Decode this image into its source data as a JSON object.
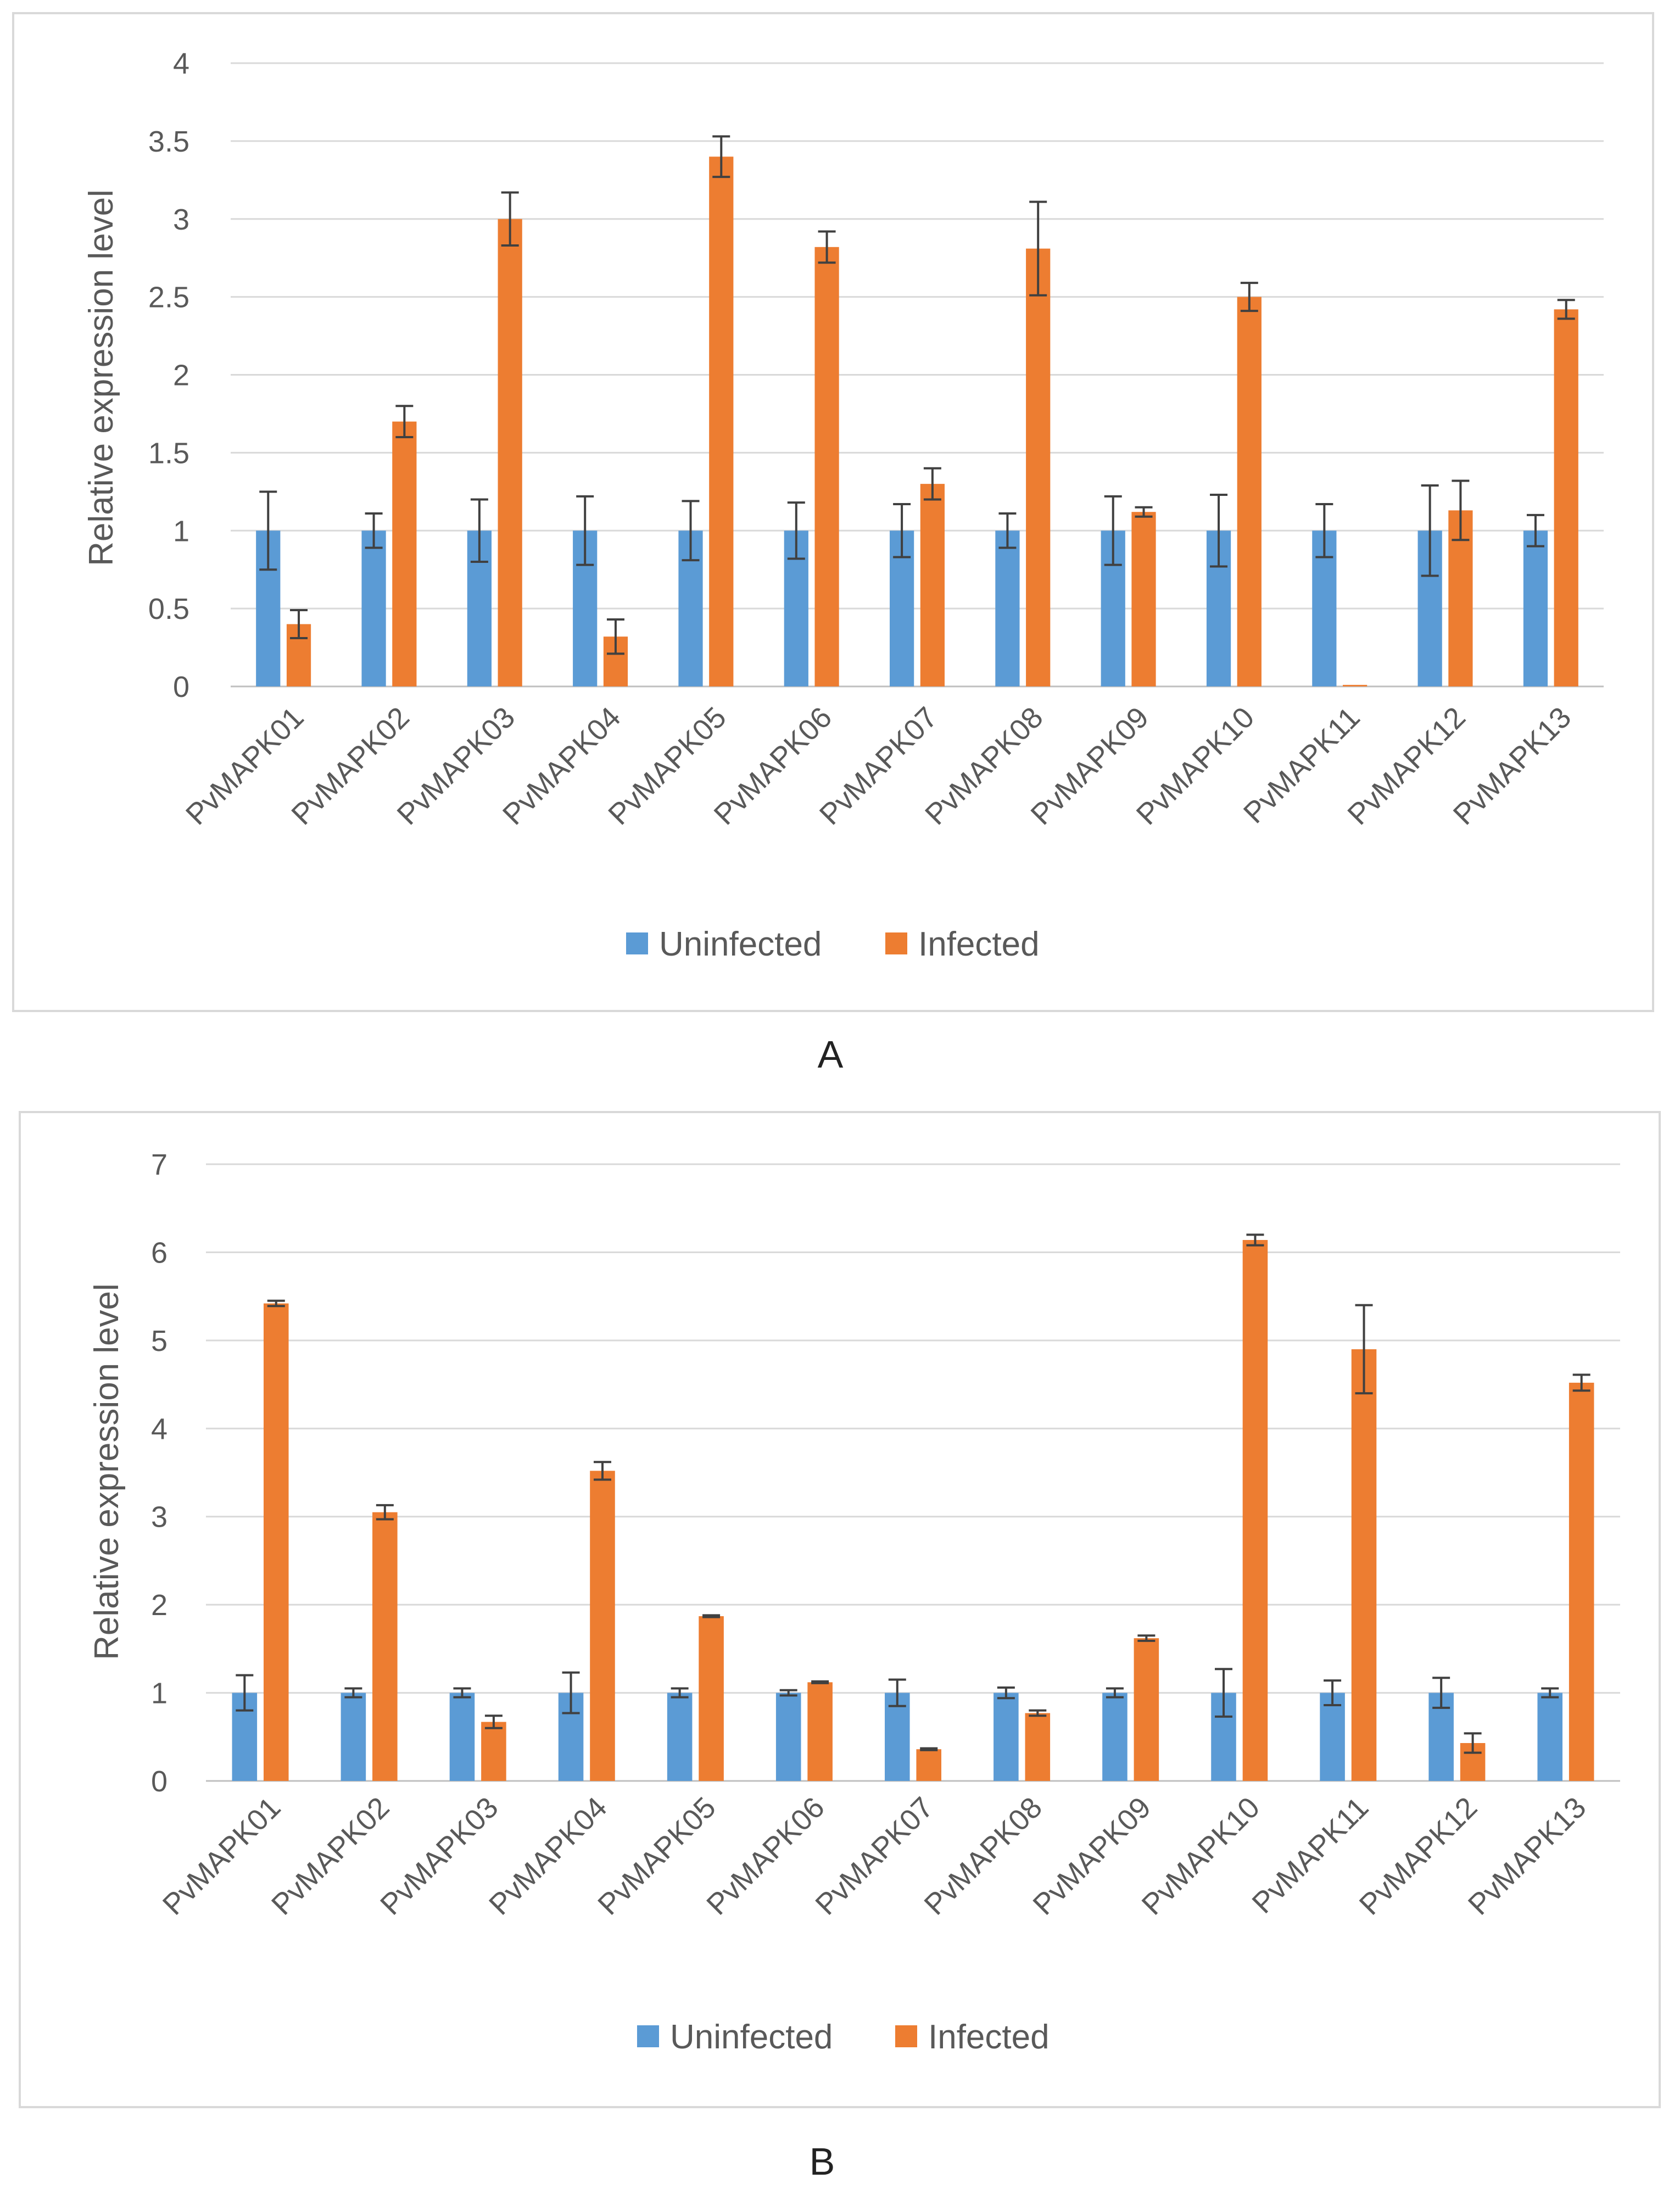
{
  "colors": {
    "uninfected": "#5B9BD5",
    "infected": "#ED7D31",
    "grid": "#D9D9D9",
    "error": "#404040"
  },
  "chart_data": [
    {
      "type": "bar",
      "panel_label": "A",
      "categories": [
        "PvMAPK01",
        "PvMAPK02",
        "PvMAPK03",
        "PvMAPK04",
        "PvMAPK05",
        "PvMAPK06",
        "PvMAPK07",
        "PvMAPK08",
        "PvMAPK09",
        "PvMAPK10",
        "PvMAPK11",
        "PvMAPK12",
        "PvMAPK13"
      ],
      "ylabel": "Relative expression level",
      "ylim": [
        0,
        4
      ],
      "yticks": [
        "0",
        "0.5",
        "1",
        "1.5",
        "2",
        "2.5",
        "3",
        "3.5",
        "4"
      ],
      "grid": true,
      "legend_position": "bottom",
      "series": [
        {
          "name": "Uninfected",
          "values": [
            1,
            1,
            1,
            1,
            1,
            1,
            1,
            1,
            1,
            1,
            1,
            1,
            1
          ],
          "errors": [
            0.25,
            0.11,
            0.2,
            0.22,
            0.19,
            0.18,
            0.17,
            0.11,
            0.22,
            0.23,
            0.17,
            0.29,
            0.1
          ]
        },
        {
          "name": "Infected",
          "values": [
            0.4,
            1.7,
            3.0,
            0.32,
            3.4,
            2.82,
            1.3,
            2.81,
            1.12,
            2.5,
            0.01,
            1.13,
            2.42
          ],
          "errors": [
            0.09,
            0.1,
            0.17,
            0.11,
            0.13,
            0.1,
            0.1,
            0.3,
            0.03,
            0.09,
            0.0,
            0.19,
            0.06
          ]
        }
      ]
    },
    {
      "type": "bar",
      "panel_label": "B",
      "categories": [
        "PvMAPK01",
        "PvMAPK02",
        "PvMAPK03",
        "PvMAPK04",
        "PvMAPK05",
        "PvMAPK06",
        "PvMAPK07",
        "PvMAPK08",
        "PvMAPK09",
        "PvMAPK10",
        "PvMAPK11",
        "PvMAPK12",
        "PvMAPK13"
      ],
      "ylabel": "Relative expression level",
      "ylim": [
        0,
        7
      ],
      "yticks": [
        "0",
        "1",
        "2",
        "3",
        "4",
        "5",
        "6",
        "7"
      ],
      "grid": true,
      "legend_position": "bottom",
      "series": [
        {
          "name": "Uninfected",
          "values": [
            1,
            1,
            1,
            1,
            1,
            1,
            1,
            1,
            1,
            1,
            1,
            1,
            1
          ],
          "errors": [
            0.2,
            0.05,
            0.05,
            0.23,
            0.05,
            0.03,
            0.15,
            0.06,
            0.05,
            0.27,
            0.14,
            0.17,
            0.05
          ]
        },
        {
          "name": "Infected",
          "values": [
            5.42,
            3.05,
            0.67,
            3.52,
            1.87,
            1.12,
            0.36,
            0.77,
            1.62,
            6.14,
            4.9,
            0.43,
            4.52
          ],
          "errors": [
            0.03,
            0.08,
            0.07,
            0.1,
            0.01,
            0.01,
            0.01,
            0.03,
            0.03,
            0.06,
            0.5,
            0.11,
            0.09
          ]
        }
      ]
    }
  ]
}
